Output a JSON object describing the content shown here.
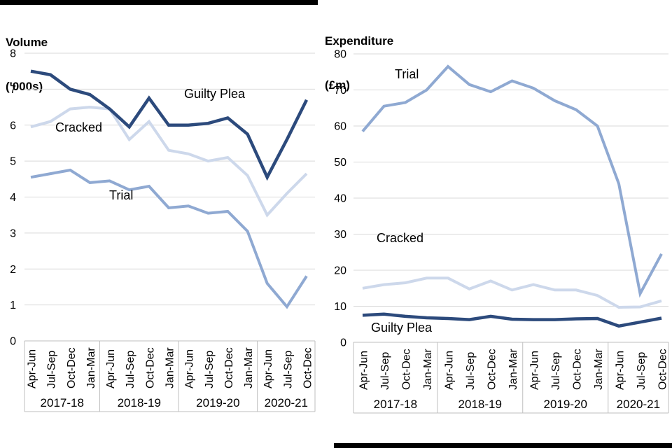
{
  "charts": [
    {
      "title_line1": "Volume",
      "title_line2": "('000s)"
    },
    {
      "title_line1": "Expenditure",
      "title_line2": "(£m)"
    }
  ],
  "colors": {
    "guilty_plea": "#2C4A7C",
    "trial": "#8FA9D2",
    "cracked": "#CDD8EB",
    "gridline": "#D9D9D9",
    "axis_box_border": "#BFBFBF",
    "divider_bar": "#000000"
  },
  "chart_data": [
    {
      "type": "line",
      "title": "Volume ('000s)",
      "ylim": [
        0,
        8
      ],
      "yticks": [
        8,
        7,
        6,
        5,
        4,
        3,
        2,
        1,
        0
      ],
      "grid": true,
      "legend_position": "inline-annotations",
      "categories": [
        "Apr-Jun",
        "Jul-Sep",
        "Oct-Dec",
        "Jan-Mar",
        "Apr-Jun",
        "Jul-Sep",
        "Oct-Dec",
        "Jan-Mar",
        "Apr-Jun",
        "Jul-Sep",
        "Oct-Dec",
        "Jan-Mar",
        "Apr-Jun",
        "Jul-Sep",
        "Oct-Dec"
      ],
      "year_groups": [
        {
          "label": "2017-18",
          "quarters": [
            "Apr-Jun",
            "Jul-Sep",
            "Oct-Dec",
            "Jan-Mar"
          ]
        },
        {
          "label": "2018-19",
          "quarters": [
            "Apr-Jun",
            "Jul-Sep",
            "Oct-Dec",
            "Jan-Mar"
          ]
        },
        {
          "label": "2019-20",
          "quarters": [
            "Apr-Jun",
            "Jul-Sep",
            "Oct-Dec",
            "Jan-Mar"
          ]
        },
        {
          "label": "2020-21",
          "quarters": [
            "Apr-Jun",
            "Jul-Sep",
            "Oct-Dec"
          ]
        }
      ],
      "series": [
        {
          "name": "Cracked",
          "color": "#CDD8EB",
          "width": 4,
          "values": [
            5.95,
            6.1,
            6.45,
            6.5,
            6.45,
            5.6,
            6.1,
            5.3,
            5.2,
            5.0,
            5.1,
            4.6,
            3.5,
            4.1,
            4.65
          ]
        },
        {
          "name": "Trial",
          "color": "#8FA9D2",
          "width": 4,
          "values": [
            4.55,
            4.65,
            4.75,
            4.4,
            4.45,
            4.2,
            4.3,
            3.7,
            3.75,
            3.55,
            3.6,
            3.05,
            1.6,
            0.95,
            1.8
          ]
        },
        {
          "name": "Guilty Plea",
          "color": "#2C4A7C",
          "width": 4.5,
          "values": [
            7.5,
            7.4,
            7.0,
            6.85,
            6.45,
            5.95,
            6.75,
            6.0,
            6.0,
            6.05,
            6.2,
            5.75,
            4.55,
            5.6,
            6.7
          ]
        }
      ],
      "annotations": [
        {
          "text": "Guilty Plea"
        },
        {
          "text": "Cracked"
        },
        {
          "text": "Trial"
        }
      ]
    },
    {
      "type": "line",
      "title": "Expenditure (£m)",
      "ylim": [
        0,
        80
      ],
      "yticks": [
        80,
        70,
        60,
        50,
        40,
        30,
        20,
        10,
        0
      ],
      "grid": true,
      "legend_position": "inline-annotations",
      "categories": [
        "Apr-Jun",
        "Jul-Sep",
        "Oct-Dec",
        "Jan-Mar",
        "Apr-Jun",
        "Jul-Sep",
        "Oct-Dec",
        "Jan-Mar",
        "Apr-Jun",
        "Jul-Sep",
        "Oct-Dec",
        "Jan-Mar",
        "Apr-Jun",
        "Jul-Sep",
        "Oct-Dec"
      ],
      "year_groups": [
        {
          "label": "2017-18",
          "quarters": [
            "Apr-Jun",
            "Jul-Sep",
            "Oct-Dec",
            "Jan-Mar"
          ]
        },
        {
          "label": "2018-19",
          "quarters": [
            "Apr-Jun",
            "Jul-Sep",
            "Oct-Dec",
            "Jan-Mar"
          ]
        },
        {
          "label": "2019-20",
          "quarters": [
            "Apr-Jun",
            "Jul-Sep",
            "Oct-Dec",
            "Jan-Mar"
          ]
        },
        {
          "label": "2020-21",
          "quarters": [
            "Apr-Jun",
            "Jul-Sep",
            "Oct-Dec"
          ]
        }
      ],
      "series": [
        {
          "name": "Cracked",
          "color": "#CDD8EB",
          "width": 4,
          "values": [
            15,
            16,
            16.5,
            17.8,
            17.8,
            14.8,
            17,
            14.5,
            16,
            14.5,
            14.5,
            13,
            9.7,
            9.8,
            11.5
          ]
        },
        {
          "name": "Trial",
          "color": "#8FA9D2",
          "width": 4,
          "values": [
            58.5,
            65.5,
            66.5,
            70,
            76.5,
            71.5,
            69.5,
            72.5,
            70.5,
            67,
            64.5,
            60,
            44,
            13.5,
            24.5
          ]
        },
        {
          "name": "Guilty Plea",
          "color": "#2C4A7C",
          "width": 4.5,
          "values": [
            7.5,
            7.8,
            7.2,
            6.8,
            6.6,
            6.3,
            7.2,
            6.4,
            6.3,
            6.3,
            6.5,
            6.6,
            4.5,
            5.6,
            6.7
          ]
        }
      ],
      "annotations": [
        {
          "text": "Trial"
        },
        {
          "text": "Cracked"
        },
        {
          "text": "Guilty Plea"
        }
      ]
    }
  ]
}
